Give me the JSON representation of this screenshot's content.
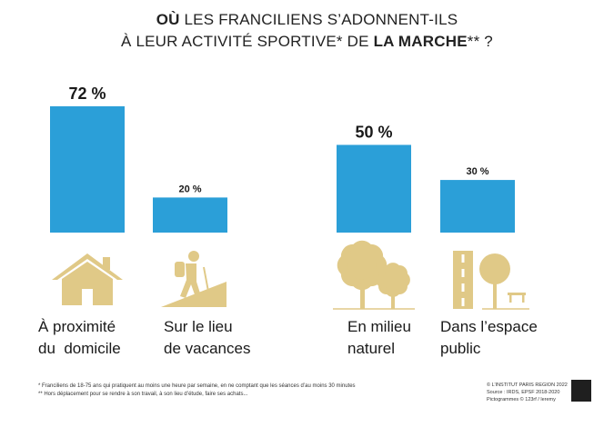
{
  "title": {
    "line1_bold": "OÙ",
    "line1_rest": " LES FRANCILIENS S’ADONNENT-ILS",
    "line2_start": "À LEUR ACTIVITÉ SPORTIVE* DE ",
    "line2_bold": "LA MARCHE",
    "line2_end": "** ?"
  },
  "chart_data": {
    "type": "bar",
    "categories": [
      "À proximité du domicile",
      "Sur le lieu de vacances",
      "En milieu naturel",
      "Dans l’espace public"
    ],
    "category_lines": [
      [
        "À proximité",
        "du  domicile"
      ],
      [
        "Sur le lieu",
        "de vacances"
      ],
      [
        "En milieu",
        "naturel"
      ],
      [
        "Dans l’espace",
        "public"
      ]
    ],
    "values": [
      72,
      20,
      50,
      30
    ],
    "value_labels": [
      "72 %",
      "20 %",
      "50 %",
      "30 %"
    ],
    "unit": "%",
    "ylim": [
      0,
      100
    ],
    "grid": false,
    "bar_color": "#2b9fd8",
    "icon_color": "#e0c987",
    "icons": [
      "house-icon",
      "hiker-icon",
      "trees-icon",
      "road-tree-bench-icon"
    ]
  },
  "footnotes": [
    "* Franciliens de 18-75 ans qui pratiquent au moins une heure par semaine, en ne comptant que les séances d’au moins 30 minutes",
    "** Hors déplacement pour se rendre à son travail, à son lieu d’étude, faire ses achats..."
  ],
  "credits": [
    "© L’INSTITUT PARIS REGION 2022",
    "Source : IRDS, EPSF 2018-2020",
    "Pictogrammes © 123rf / leremy"
  ],
  "logo_text": "L’INSTITUT PARIS REGION"
}
